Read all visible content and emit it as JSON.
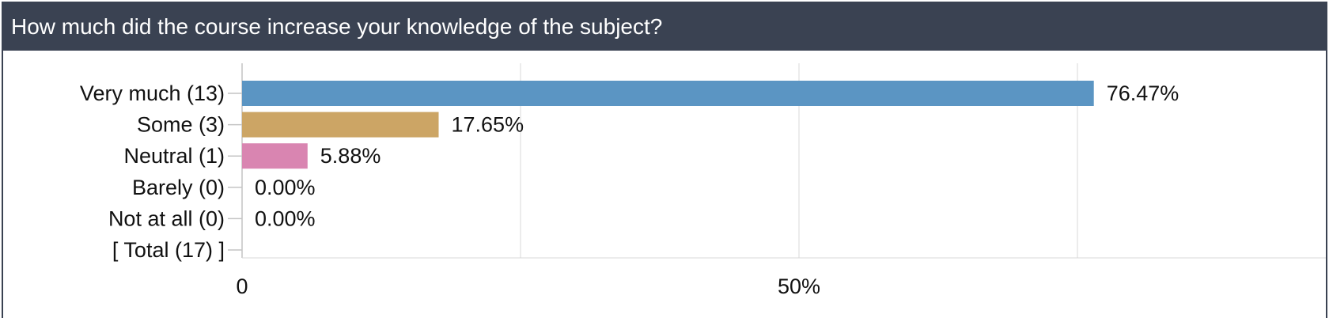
{
  "header": {
    "title": "How much did the course increase your knowledge of the subject?"
  },
  "colors": {
    "header_bg": "#3a4252",
    "header_text": "#ffffff",
    "grid": "#d9d9d9",
    "axis": "#c4c4c4"
  },
  "chart_data": {
    "type": "bar",
    "orientation": "horizontal",
    "title": "",
    "xlabel": "",
    "ylabel": "",
    "xlim": [
      0,
      100
    ],
    "grid": true,
    "x_tick_labels": [
      "0",
      "50%"
    ],
    "x_tick_values": [
      0,
      50
    ],
    "categories": [
      "Very much (13)",
      "Some (3)",
      "Neutral (1)",
      "Barely (0)",
      "Not at all (0)",
      "[ Total (17) ]"
    ],
    "values": [
      76.47,
      17.65,
      5.88,
      0.0,
      0.0,
      null
    ],
    "value_labels": [
      "76.47%",
      "17.65%",
      "5.88%",
      "0.00%",
      "0.00%",
      ""
    ],
    "bar_colors": [
      "#5b95c3",
      "#cca565",
      "#d985b1",
      "#cccccc",
      "#cccccc",
      "#cccccc"
    ]
  }
}
